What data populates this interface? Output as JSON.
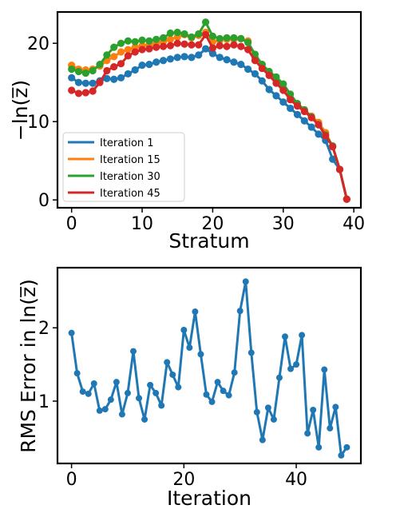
{
  "chart_data": [
    {
      "type": "line",
      "xlabel": "Stratum",
      "ylabel": "−ln(z̅)",
      "xlim": [
        -2,
        41
      ],
      "ylim": [
        -1,
        24
      ],
      "xticks": [
        0,
        10,
        20,
        30,
        40
      ],
      "xtick_labels": [
        "0",
        "10",
        "20",
        "30",
        "40"
      ],
      "yticks": [
        0,
        10,
        20
      ],
      "ytick_labels": [
        "0",
        "10",
        "20"
      ],
      "grid": false,
      "legend_placement": "lower-left",
      "x": [
        0,
        1,
        2,
        3,
        4,
        5,
        6,
        7,
        8,
        9,
        10,
        11,
        12,
        13,
        14,
        15,
        16,
        17,
        18,
        19,
        20,
        21,
        22,
        23,
        24,
        25,
        26,
        27,
        28,
        29,
        30,
        31,
        32,
        33,
        34,
        35,
        36,
        37,
        38,
        39
      ],
      "series": [
        {
          "name": "Iteration 1",
          "color": "#1f77b4",
          "values": [
            15.6,
            15.0,
            14.9,
            14.9,
            15.2,
            15.5,
            15.4,
            15.6,
            16.1,
            16.6,
            17.2,
            17.3,
            17.6,
            17.8,
            18.0,
            18.2,
            18.3,
            18.2,
            18.5,
            19.3,
            18.7,
            18.2,
            17.9,
            17.6,
            17.3,
            16.7,
            16.1,
            15.2,
            14.1,
            13.3,
            12.5,
            11.7,
            10.9,
            10.1,
            9.3,
            8.4,
            7.6,
            5.2,
            3.9,
            0.1
          ]
        },
        {
          "name": "Iteration 15",
          "color": "#ff7f0e",
          "values": [
            17.2,
            16.7,
            16.6,
            16.7,
            17.1,
            17.8,
            18.3,
            18.9,
            19.2,
            19.5,
            19.7,
            19.8,
            20.0,
            20.2,
            20.5,
            20.8,
            21.1,
            20.7,
            21.0,
            21.4,
            20.2,
            20.4,
            20.5,
            20.5,
            20.6,
            20.3,
            18.2,
            17.3,
            16.2,
            15.3,
            14.2,
            13.0,
            12.1,
            11.5,
            10.7,
            9.9,
            8.6,
            6.8,
            3.9,
            0.1
          ]
        },
        {
          "name": "Iteration 30",
          "color": "#2ca02c",
          "values": [
            16.7,
            16.4,
            16.2,
            16.5,
            17.3,
            18.5,
            19.5,
            20.0,
            20.3,
            20.2,
            20.4,
            20.3,
            20.5,
            20.7,
            21.3,
            21.4,
            21.2,
            20.8,
            21.2,
            22.7,
            20.9,
            20.6,
            20.7,
            20.7,
            20.6,
            20.1,
            18.6,
            17.3,
            16.4,
            15.7,
            14.8,
            13.5,
            12.3,
            11.5,
            10.6,
            9.6,
            8.3,
            6.9,
            3.9,
            0.1
          ]
        },
        {
          "name": "Iteration 45",
          "color": "#d62728",
          "values": [
            14.0,
            13.6,
            13.7,
            13.9,
            15.0,
            16.5,
            17.0,
            17.4,
            18.4,
            18.9,
            19.2,
            19.3,
            19.5,
            19.6,
            19.7,
            20.0,
            19.9,
            19.8,
            19.8,
            21.1,
            19.4,
            19.7,
            19.6,
            19.8,
            19.6,
            19.2,
            17.8,
            16.8,
            15.9,
            14.9,
            14.0,
            12.8,
            12.0,
            11.3,
            10.5,
            9.6,
            8.2,
            6.8,
            3.9,
            0.1
          ]
        }
      ]
    },
    {
      "type": "line",
      "xlabel": "Iteration",
      "ylabel": "RMS Error in ln(z̅)",
      "xlim": [
        -2.5,
        51.5
      ],
      "ylim": [
        0.15,
        2.82
      ],
      "xticks": [
        0,
        20,
        40
      ],
      "xtick_labels": [
        "0",
        "20",
        "40"
      ],
      "yticks": [
        1,
        2
      ],
      "ytick_labels": [
        "1",
        "2"
      ],
      "grid": false,
      "x": [
        0,
        1,
        2,
        3,
        4,
        5,
        6,
        7,
        8,
        9,
        10,
        11,
        12,
        13,
        14,
        15,
        16,
        17,
        18,
        19,
        20,
        21,
        22,
        23,
        24,
        25,
        26,
        27,
        28,
        29,
        30,
        31,
        32,
        33,
        34,
        35,
        36,
        37,
        38,
        39,
        40,
        41,
        42,
        43,
        44,
        45,
        46,
        47,
        48,
        49
      ],
      "series": [
        {
          "color": "#1f77b4",
          "values": [
            1.93,
            1.38,
            1.13,
            1.1,
            1.24,
            0.87,
            0.89,
            1.02,
            1.26,
            0.82,
            1.11,
            1.68,
            1.04,
            0.75,
            1.22,
            1.11,
            0.94,
            1.53,
            1.36,
            1.19,
            1.97,
            1.73,
            2.22,
            1.64,
            1.09,
            0.99,
            1.26,
            1.14,
            1.08,
            1.39,
            2.23,
            2.63,
            1.66,
            0.85,
            0.47,
            0.91,
            0.75,
            1.32,
            1.88,
            1.44,
            1.5,
            1.9,
            0.56,
            0.88,
            0.37,
            1.43,
            0.63,
            0.92,
            0.26,
            0.37
          ]
        }
      ]
    }
  ]
}
